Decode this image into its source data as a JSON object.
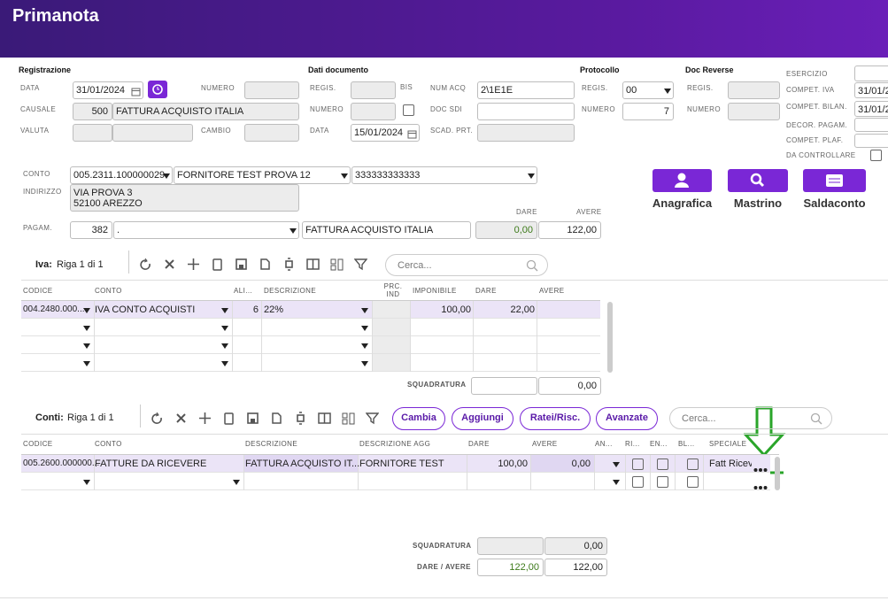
{
  "header": {
    "title": "Primanota"
  },
  "registrazione": {
    "title": "Registrazione",
    "data_label": "DATA",
    "data": "31/01/2024",
    "numero_label": "NUMERO",
    "causale_label": "CAUSALE",
    "causale_code": "500",
    "causale": "FATTURA ACQUISTO ITALIA",
    "valuta_label": "VALUTA",
    "cambio_label": "CAMBIO"
  },
  "dati_documento": {
    "title": "Dati documento",
    "regis_label": "REGIS.",
    "bis_label": "BIS",
    "numero_label": "NUMERO",
    "data_label": "DATA",
    "data": "15/01/2024",
    "num_acq_label": "NUM ACQ",
    "num_acq": "2\\1E1E",
    "doc_sdi_label": "DOC SDI",
    "scad_label": "SCAD. PRT."
  },
  "protocollo": {
    "title": "Protocollo",
    "regis_label": "REGIS.",
    "regis": "00",
    "numero_label": "NUMERO",
    "numero": "7"
  },
  "doc_reverse": {
    "title": "Doc Reverse",
    "regis_label": "REGIS.",
    "numero_label": "NUMERO"
  },
  "esercizio": {
    "esercizio_label": "ESERCIZIO",
    "compet_iva_label": "COMPET. IVA",
    "compet_iva": "31/01/2",
    "compet_bilan_label": "COMPET. BILAN.",
    "compet_bilan": "31/01/2",
    "decor_label": "DECOR. PAGAM.",
    "compet_plaf_label": "COMPET. PLAF.",
    "da_controllare_label": "DA CONTROLLARE"
  },
  "conto": {
    "conto_label": "CONTO",
    "conto_code": "005.2311.100000029",
    "fornitore": "FORNITORE TEST PROVA 12",
    "piva": "333333333333",
    "indirizzo_label": "INDIRIZZO",
    "indirizzo_lines": [
      "VIA PROVA 3",
      "52100 AREZZO"
    ],
    "pagam_label": "PAGAM.",
    "pagam_code": "382",
    "pagam": ".",
    "pagam_desc": "FATTURA ACQUISTO ITALIA",
    "dare_label": "DARE",
    "avere_label": "AVERE",
    "dare": "0,00",
    "avere": "122,00"
  },
  "buttons": [
    "Anagrafica",
    "Mastrino",
    "Saldaconto"
  ],
  "iva": {
    "title": "Iva:",
    "riga": "Riga 1 di 1",
    "search_placeholder": "Cerca...",
    "columns": [
      "CODICE",
      "CONTO",
      "ALI...",
      "DESCRIZIONE",
      "PRC. IND",
      "IMPONIBILE",
      "DARE",
      "AVERE"
    ],
    "row": {
      "codice": "004.2480.000...",
      "conto": "IVA CONTO ACQUISTI",
      "aliquota": "6",
      "descrizione": "22%",
      "imponibile": "100,00",
      "dare": "22,00"
    },
    "squadratura_label": "SQUADRATURA",
    "squadratura": "0,00"
  },
  "conti": {
    "title": "Conti:",
    "riga": "Riga 1 di 1",
    "buttons": [
      "Cambia",
      "Aggiungi",
      "Ratei/Risc.",
      "Avanzate"
    ],
    "search_placeholder": "Cerca...",
    "columns": [
      "CODICE",
      "CONTO",
      "DESCRIZIONE",
      "DESCRIZIONE AGG",
      "DARE",
      "AVERE",
      "AN...",
      "RI...",
      "EN...",
      "BL...",
      "SPECIALE"
    ],
    "row": {
      "codice": "005.2600.000000...",
      "conto": "FATTURE DA RICEVERE",
      "descrizione": "FATTURA ACQUISTO IT...",
      "descrizione_agg": "FORNITORE TEST",
      "dare": "100,00",
      "avere": "0,00",
      "speciale": "Fatt Ricev"
    }
  },
  "totals": {
    "squadratura_label": "SQUADRATURA",
    "squadratura": "0,00",
    "dare_avere_label": "DARE / AVERE",
    "dare": "122,00",
    "avere": "122,00"
  }
}
